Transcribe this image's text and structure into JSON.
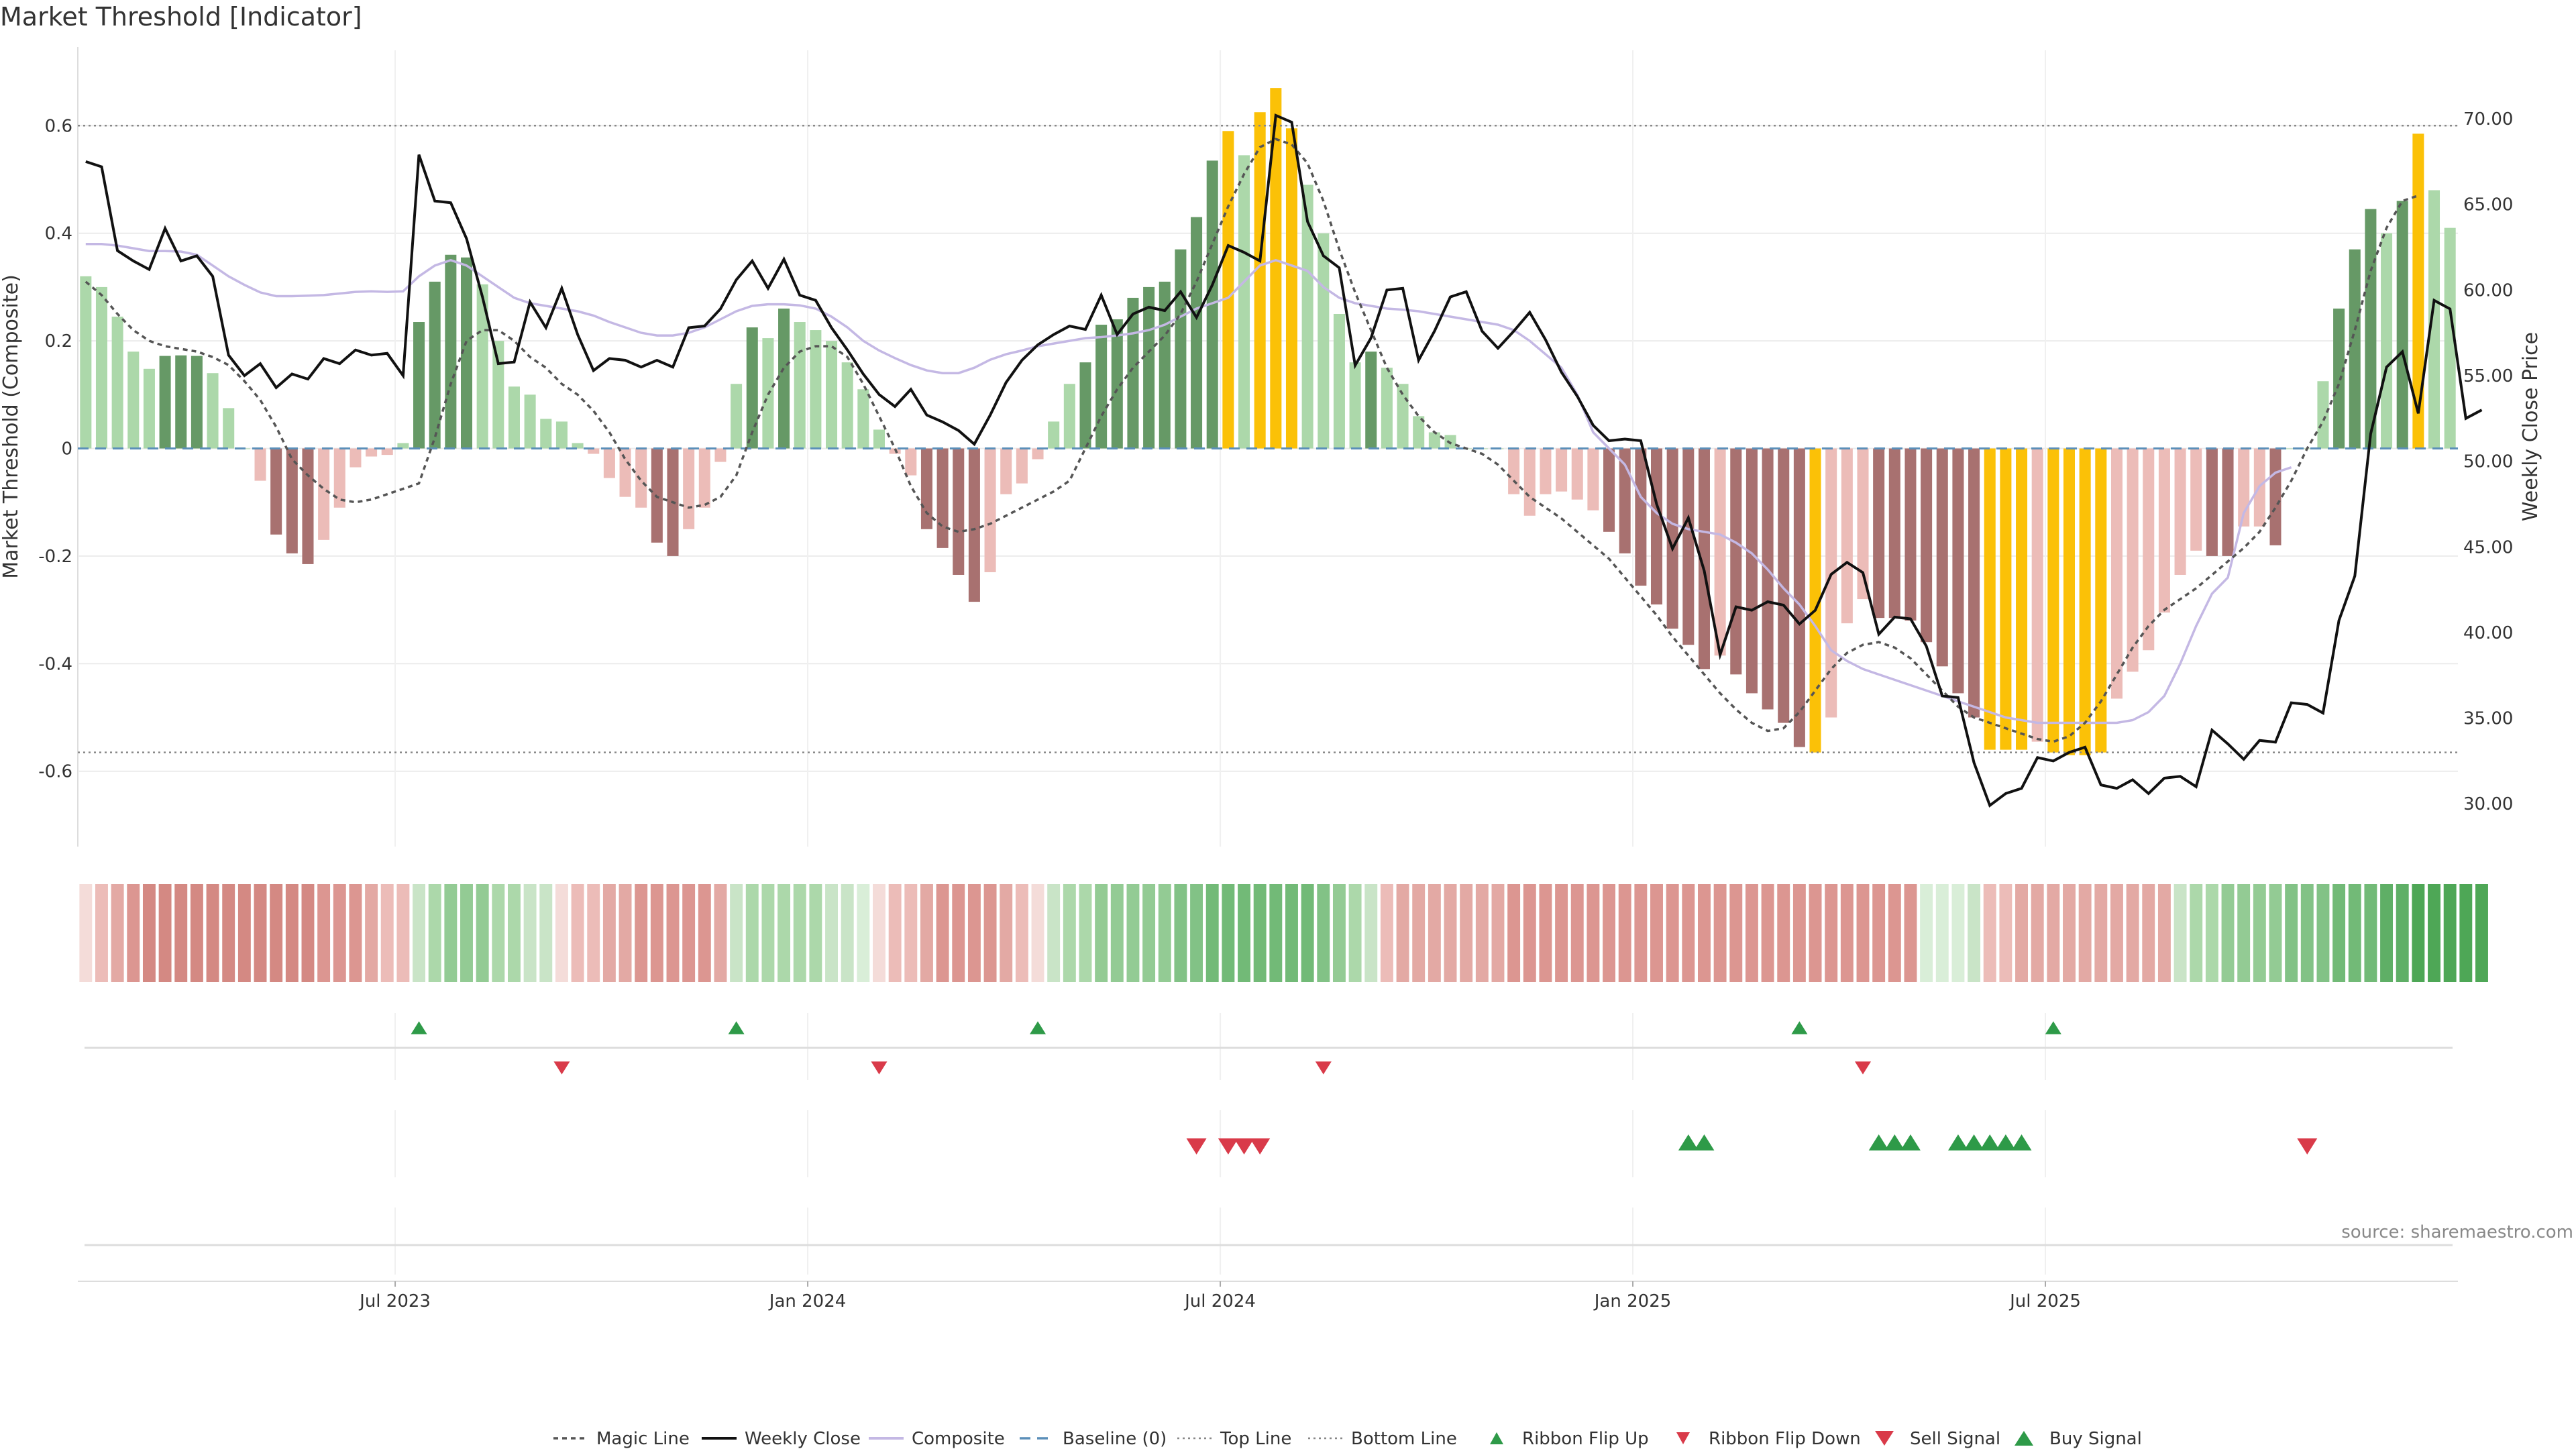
{
  "chart_data": {
    "type": "bar",
    "title": "Market Threshold [Indicator]",
    "ylabel_left": "Market Threshold (Composite)",
    "ylabel_right": "Weekly Close Price",
    "ylim_left": [
      -0.74,
      0.74
    ],
    "ylim_right": [
      27.5,
      74.0
    ],
    "left_ticks": [
      "0.6",
      "0.4",
      "0.2",
      "0",
      "-0.2",
      "-0.4",
      "-0.6"
    ],
    "left_tick_values": [
      0.6,
      0.4,
      0.2,
      0,
      -0.2,
      -0.4,
      -0.6
    ],
    "right_ticks": [
      "70.00",
      "65.00",
      "60.00",
      "55.00",
      "50.00",
      "45.00",
      "40.00",
      "35.00",
      "30.00"
    ],
    "right_tick_values": [
      70,
      65,
      60,
      55,
      50,
      45,
      40,
      35,
      30
    ],
    "x_ticks": [
      "Jul 2023",
      "Jan 2024",
      "Jul 2024",
      "Jan 2025",
      "Jul 2025"
    ],
    "x_tick_weeks": [
      20,
      46,
      72,
      98,
      124
    ],
    "grid": true,
    "top_line": 0.6,
    "bottom_line": -0.565,
    "composite": [
      0.32,
      0.3,
      0.245,
      0.18,
      0.148,
      0.172,
      0.173,
      0.172,
      0.14,
      0.075,
      0,
      -0.06,
      -0.16,
      -0.195,
      -0.215,
      -0.17,
      -0.11,
      -0.035,
      -0.015,
      -0.012,
      0.01,
      0.235,
      0.31,
      0.36,
      0.355,
      0.305,
      0.2,
      0.115,
      0.1,
      0.055,
      0.05,
      0.01,
      -0.01,
      -0.055,
      -0.09,
      -0.11,
      -0.175,
      -0.2,
      -0.15,
      -0.11,
      -0.025,
      0.12,
      0.225,
      0.205,
      0.26,
      0.235,
      0.22,
      0.2,
      0.16,
      0.11,
      0.035,
      -0.01,
      -0.05,
      -0.15,
      -0.185,
      -0.235,
      -0.285,
      -0.23,
      -0.085,
      -0.065,
      -0.02,
      0.05,
      0.12,
      0.16,
      0.23,
      0.24,
      0.28,
      0.3,
      0.31,
      0.37,
      0.43,
      0.535,
      0.59,
      0.545,
      0.625,
      0.67,
      0.595,
      0.49,
      0.4,
      0.25,
      0.16,
      0.18,
      0.15,
      0.12,
      0.06,
      0.03,
      0.025,
      0,
      0,
      0,
      -0.085,
      -0.125,
      -0.085,
      -0.08,
      -0.095,
      -0.115,
      -0.155,
      -0.195,
      -0.255,
      -0.29,
      -0.335,
      -0.365,
      -0.41,
      -0.385,
      -0.42,
      -0.455,
      -0.485,
      -0.51,
      -0.555,
      -0.565,
      -0.5,
      -0.325,
      -0.28,
      -0.315,
      -0.315,
      -0.32,
      -0.36,
      -0.405,
      -0.455,
      -0.5,
      -0.56,
      -0.56,
      -0.56,
      -0.545,
      -0.565,
      -0.57,
      -0.57,
      -0.565,
      -0.465,
      -0.415,
      -0.375,
      -0.305,
      -0.235,
      -0.19,
      -0.2,
      -0.2,
      -0.145,
      -0.145,
      -0.18,
      0,
      0,
      0.125,
      0.26,
      0.37,
      0.445,
      0.4,
      0.46,
      0.585,
      0.48,
      0.41
    ],
    "composite_bar_colors": {
      "strong_up": "#669966",
      "weak_up": "#acd8aa",
      "strong_down": "#a87170",
      "weak_down": "#ecbcb8",
      "extreme": "#fbc107"
    },
    "weekly_close": [
      67.5,
      67.2,
      62.3,
      61.7,
      61.2,
      63.6,
      61.7,
      62.0,
      60.8,
      56.2,
      55.0,
      55.7,
      54.3,
      55.1,
      54.8,
      56.0,
      55.7,
      56.5,
      56.2,
      56.3,
      55.0,
      67.9,
      65.2,
      65.1,
      63.0,
      59.6,
      55.7,
      55.8,
      59.3,
      57.8,
      60.1,
      57.4,
      55.3,
      56.0,
      55.9,
      55.5,
      55.9,
      55.5,
      57.8,
      57.9,
      58.9,
      60.6,
      61.7,
      60.1,
      61.8,
      59.7,
      59.4,
      57.8,
      56.5,
      55.1,
      53.9,
      53.2,
      54.2,
      52.7,
      52.3,
      51.8,
      51.0,
      52.7,
      54.6,
      55.9,
      56.8,
      57.4,
      57.9,
      57.7,
      59.7,
      57.4,
      58.6,
      59.0,
      58.8,
      59.9,
      58.4,
      60.3,
      62.6,
      62.2,
      61.7,
      70.2,
      69.8,
      64.0,
      62.0,
      61.3,
      55.6,
      57.2,
      60.0,
      60.1,
      55.9,
      57.6,
      59.6,
      59.9,
      57.6,
      56.6,
      57.6,
      58.7,
      57.1,
      55.2,
      53.8,
      52.1,
      51.2,
      51.3,
      51.2,
      47.5,
      44.9,
      46.7,
      43.6,
      38.7,
      41.5,
      41.3,
      41.8,
      41.6,
      40.5,
      41.3,
      43.4,
      44.1,
      43.5,
      39.9,
      40.9,
      40.8,
      39.2,
      36.3,
      36.2,
      32.4,
      29.9,
      30.6,
      30.9,
      32.7,
      32.5,
      33.0,
      33.3,
      31.1,
      30.9,
      31.4,
      30.6,
      31.5,
      31.6,
      31.0,
      34.3,
      33.5,
      32.6,
      33.7,
      33.6,
      35.9,
      35.8,
      35.3,
      40.7,
      43.3,
      51.6,
      55.5,
      56.4,
      52.8,
      59.4,
      58.9,
      52.5,
      53.0
    ],
    "magic_line": [
      0.31,
      0.285,
      0.25,
      0.22,
      0.2,
      0.19,
      0.185,
      0.18,
      0.17,
      0.155,
      0.125,
      0.09,
      0.04,
      -0.02,
      -0.05,
      -0.075,
      -0.095,
      -0.1,
      -0.095,
      -0.085,
      -0.075,
      -0.065,
      0.02,
      0.12,
      0.2,
      0.22,
      0.22,
      0.2,
      0.17,
      0.15,
      0.12,
      0.1,
      0.07,
      0.03,
      -0.02,
      -0.06,
      -0.09,
      -0.1,
      -0.11,
      -0.105,
      -0.09,
      -0.05,
      0.03,
      0.1,
      0.15,
      0.18,
      0.19,
      0.19,
      0.17,
      0.12,
      0.06,
      0,
      -0.07,
      -0.12,
      -0.145,
      -0.155,
      -0.15,
      -0.14,
      -0.125,
      -0.11,
      -0.095,
      -0.08,
      -0.06,
      0,
      0.06,
      0.11,
      0.15,
      0.18,
      0.21,
      0.25,
      0.31,
      0.38,
      0.45,
      0.51,
      0.56,
      0.575,
      0.565,
      0.53,
      0.46,
      0.37,
      0.29,
      0.22,
      0.15,
      0.1,
      0.06,
      0.03,
      0.01,
      0,
      -0.01,
      -0.03,
      -0.06,
      -0.09,
      -0.11,
      -0.13,
      -0.155,
      -0.18,
      -0.205,
      -0.24,
      -0.275,
      -0.31,
      -0.35,
      -0.385,
      -0.42,
      -0.455,
      -0.485,
      -0.51,
      -0.525,
      -0.52,
      -0.49,
      -0.45,
      -0.41,
      -0.38,
      -0.365,
      -0.36,
      -0.37,
      -0.39,
      -0.42,
      -0.45,
      -0.48,
      -0.5,
      -0.51,
      -0.52,
      -0.53,
      -0.54,
      -0.545,
      -0.535,
      -0.51,
      -0.47,
      -0.42,
      -0.37,
      -0.33,
      -0.3,
      -0.28,
      -0.26,
      -0.235,
      -0.21,
      -0.185,
      -0.155,
      -0.11,
      -0.06,
      0,
      0.05,
      0.12,
      0.22,
      0.33,
      0.41,
      0.46,
      0.47
    ],
    "composite_line": [
      0.38,
      0.38,
      0.377,
      0.372,
      0.367,
      0.367,
      0.366,
      0.36,
      0.34,
      0.32,
      0.304,
      0.29,
      0.283,
      0.283,
      0.284,
      0.285,
      0.288,
      0.291,
      0.292,
      0.291,
      0.292,
      0.32,
      0.34,
      0.35,
      0.34,
      0.32,
      0.3,
      0.28,
      0.27,
      0.265,
      0.26,
      0.255,
      0.247,
      0.235,
      0.225,
      0.215,
      0.21,
      0.21,
      0.215,
      0.225,
      0.24,
      0.255,
      0.265,
      0.268,
      0.268,
      0.266,
      0.26,
      0.245,
      0.225,
      0.2,
      0.182,
      0.168,
      0.155,
      0.145,
      0.14,
      0.14,
      0.15,
      0.165,
      0.175,
      0.182,
      0.19,
      0.195,
      0.2,
      0.205,
      0.207,
      0.21,
      0.214,
      0.22,
      0.23,
      0.245,
      0.26,
      0.27,
      0.28,
      0.31,
      0.34,
      0.35,
      0.34,
      0.33,
      0.3,
      0.28,
      0.27,
      0.265,
      0.26,
      0.258,
      0.255,
      0.25,
      0.245,
      0.24,
      0.235,
      0.23,
      0.22,
      0.2,
      0.175,
      0.15,
      0.1,
      0.03,
      0,
      -0.03,
      -0.09,
      -0.12,
      -0.14,
      -0.15,
      -0.155,
      -0.16,
      -0.175,
      -0.195,
      -0.225,
      -0.26,
      -0.29,
      -0.33,
      -0.375,
      -0.395,
      -0.41,
      -0.42,
      -0.43,
      -0.44,
      -0.45,
      -0.46,
      -0.47,
      -0.48,
      -0.49,
      -0.5,
      -0.505,
      -0.51,
      -0.51,
      -0.51,
      -0.51,
      -0.51,
      -0.51,
      -0.505,
      -0.49,
      -0.46,
      -0.4,
      -0.33,
      -0.27,
      -0.24,
      -0.12,
      -0.07,
      -0.045,
      -0.035
    ],
    "ribbon_colors": [
      "#f4dcd9",
      "#ecbcb8",
      "#e3a9a4",
      "#dc9691",
      "#d48983",
      "#d48983",
      "#d48983",
      "#d48983",
      "#d48983",
      "#d48983",
      "#d48983",
      "#d48983",
      "#d48983",
      "#d48983",
      "#d48983",
      "#dc9691",
      "#dc9691",
      "#dc9691",
      "#e3a9a4",
      "#ecbcb8",
      "#ecbcb8",
      "#c9e4c7",
      "#acd8aa",
      "#93cb94",
      "#93cb94",
      "#93cb94",
      "#acd8aa",
      "#acd8aa",
      "#c9e4c7",
      "#c9e4c7",
      "#f4dcd9",
      "#ecbcb8",
      "#ecbcb8",
      "#e3a9a4",
      "#e3a9a4",
      "#dc9691",
      "#dc9691",
      "#dc9691",
      "#dc9691",
      "#dc9691",
      "#e3a9a4",
      "#c9e4c7",
      "#acd8aa",
      "#acd8aa",
      "#acd8aa",
      "#acd8aa",
      "#acd8aa",
      "#c9e4c7",
      "#c9e4c7",
      "#d9eed8",
      "#f4dcd9",
      "#ecbcb8",
      "#ecbcb8",
      "#e3a9a4",
      "#dc9691",
      "#dc9691",
      "#dc9691",
      "#dc9691",
      "#e3a9a4",
      "#ecbcb8",
      "#f4dcd9",
      "#c9e4c7",
      "#acd8aa",
      "#acd8aa",
      "#93cb94",
      "#93cb94",
      "#93cb94",
      "#93cb94",
      "#93cb94",
      "#82c286",
      "#82c286",
      "#72ba77",
      "#72ba77",
      "#72ba77",
      "#72ba77",
      "#72ba77",
      "#72ba77",
      "#72ba77",
      "#82c286",
      "#93cb94",
      "#acd8aa",
      "#c9e4c7",
      "#ecbcb8",
      "#e3a9a4",
      "#e3a9a4",
      "#e3a9a4",
      "#e3a9a4",
      "#e3a9a4",
      "#e3a9a4",
      "#e3a9a4",
      "#dc9691",
      "#dc9691",
      "#dc9691",
      "#dc9691",
      "#dc9691",
      "#dc9691",
      "#dc9691",
      "#dc9691",
      "#dc9691",
      "#dc9691",
      "#dc9691",
      "#dc9691",
      "#dc9691",
      "#dc9691",
      "#dc9691",
      "#dc9691",
      "#dc9691",
      "#dc9691",
      "#dc9691",
      "#dc9691",
      "#dc9691",
      "#dc9691",
      "#dc9691",
      "#dc9691",
      "#dc9691",
      "#dc9691",
      "#d9eed8",
      "#d9eed8",
      "#d9eed8",
      "#c9e4c7",
      "#ecbcb8",
      "#ecbcb8",
      "#e3a9a4",
      "#e3a9a4",
      "#e3a9a4",
      "#e3a9a4",
      "#e3a9a4",
      "#e3a9a4",
      "#e3a9a4",
      "#e3a9a4",
      "#e3a9a4",
      "#e3a9a4",
      "#c9e4c7",
      "#acd8aa",
      "#acd8aa",
      "#93cb94",
      "#93cb94",
      "#93cb94",
      "#93cb94",
      "#82c286",
      "#82c286",
      "#82c286",
      "#72ba77",
      "#72ba77",
      "#72ba77",
      "#5faf66",
      "#5faf66",
      "#4ea756",
      "#4ea756",
      "#4ea756",
      "#4ea756",
      "#4ea756"
    ],
    "ribbon_flip_up_weeks": [
      21,
      41,
      60,
      108,
      124
    ],
    "ribbon_flip_down_weeks": [
      30,
      50,
      78,
      112
    ],
    "sell_signal_weeks": [
      70,
      72,
      73,
      74,
      140
    ],
    "buy_signal_weeks": [
      101,
      102,
      113,
      114,
      115,
      118,
      119,
      120,
      121,
      122
    ],
    "signal_colors": {
      "up": "#2e9a48",
      "down": "#d93a49"
    },
    "legend": [
      "Magic Line",
      "Weekly Close",
      "Composite",
      "Baseline (0)",
      "Top Line",
      "Bottom Line",
      "Ribbon Flip Up",
      "Ribbon Flip Down",
      "Sell Signal",
      "Buy Signal"
    ],
    "source": "source: sharemaestro.com"
  }
}
